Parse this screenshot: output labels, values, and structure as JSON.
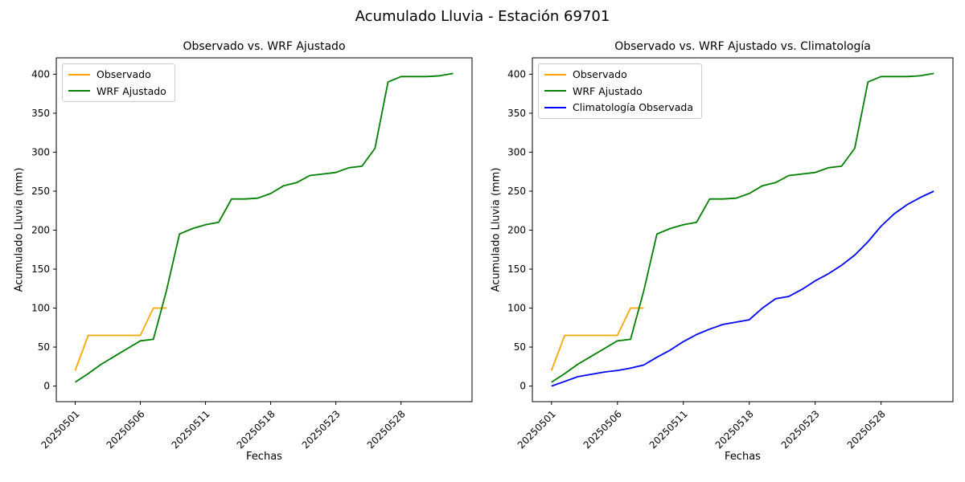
{
  "figure": {
    "title": "Acumulado Lluvia - Estación 69701",
    "background_color": "#ffffff",
    "text_color": "#000000"
  },
  "chart_data": [
    {
      "type": "line",
      "title": "Observado vs. WRF Ajustado",
      "xlabel": "Fechas",
      "ylabel": "Acumulado Lluvia (mm)",
      "n_points": 30,
      "grid": false,
      "legend_position": "upper-left",
      "xtick_positions": [
        0,
        5,
        10,
        15,
        20,
        25
      ],
      "xtick_labels": [
        "20250501",
        "20250506",
        "20250511",
        "20250518",
        "20250523",
        "20250528"
      ],
      "xtick_rotation": 45,
      "yticks": [
        0,
        50,
        100,
        150,
        200,
        250,
        300,
        350,
        400
      ],
      "ylim": [
        -20,
        421
      ],
      "series": [
        {
          "name": "Observado",
          "color": "#FFA500",
          "values": [
            20,
            65,
            65,
            65,
            65,
            65,
            100,
            100
          ]
        },
        {
          "name": "WRF Ajustado",
          "color": "#008000",
          "values": [
            5,
            16,
            28,
            38,
            48,
            58,
            60,
            122,
            195,
            202,
            207,
            210,
            240,
            240,
            241,
            247,
            257,
            261,
            270,
            272,
            274,
            280,
            282,
            305,
            390,
            397,
            397,
            397,
            398,
            401
          ]
        }
      ]
    },
    {
      "type": "line",
      "title": "Observado vs. WRF Ajustado vs. Climatología",
      "xlabel": "Fechas",
      "ylabel": "Acumulado Lluvia (mm)",
      "n_points": 30,
      "grid": false,
      "legend_position": "upper-left",
      "xtick_positions": [
        0,
        5,
        10,
        15,
        20,
        25
      ],
      "xtick_labels": [
        "20250501",
        "20250506",
        "20250511",
        "20250518",
        "20250523",
        "20250528"
      ],
      "xtick_rotation": 45,
      "yticks": [
        0,
        50,
        100,
        150,
        200,
        250,
        300,
        350,
        400
      ],
      "ylim": [
        -20,
        421
      ],
      "series": [
        {
          "name": "Observado",
          "color": "#FFA500",
          "values": [
            20,
            65,
            65,
            65,
            65,
            65,
            100,
            100
          ]
        },
        {
          "name": "WRF Ajustado",
          "color": "#008000",
          "values": [
            5,
            16,
            28,
            38,
            48,
            58,
            60,
            122,
            195,
            202,
            207,
            210,
            240,
            240,
            241,
            247,
            257,
            261,
            270,
            272,
            274,
            280,
            282,
            305,
            390,
            397,
            397,
            397,
            398,
            401
          ]
        },
        {
          "name": "Climatología Observada",
          "color": "#0000FF",
          "values": [
            0,
            6,
            12,
            15,
            18,
            20,
            23,
            27,
            37,
            46,
            57,
            66,
            73,
            79,
            82,
            85,
            100,
            112,
            115,
            124,
            135,
            144,
            155,
            168,
            185,
            205,
            221,
            233,
            242,
            250
          ]
        }
      ]
    }
  ]
}
